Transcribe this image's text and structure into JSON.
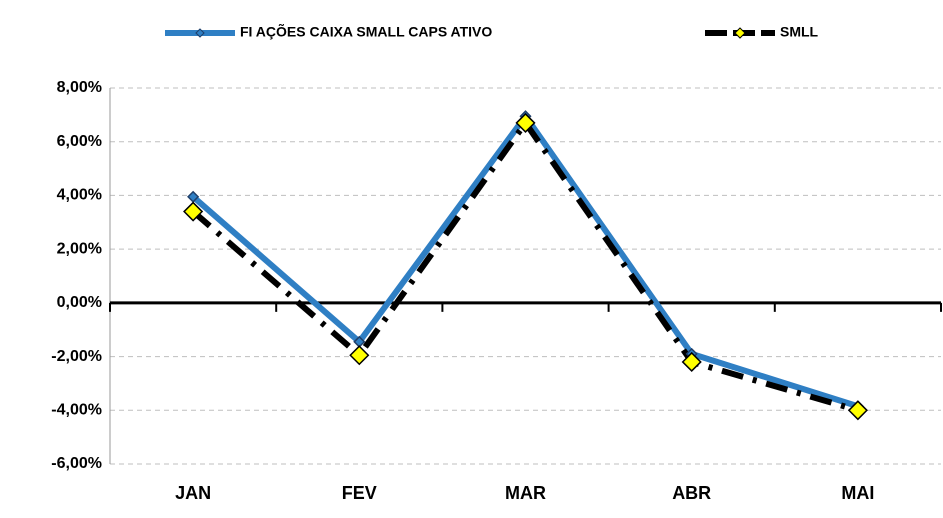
{
  "chart_data": {
    "type": "line",
    "categories": [
      "JAN",
      "FEV",
      "MAR",
      "ABR",
      "MAI"
    ],
    "series": [
      {
        "name": "FI AÇÕES CAIXA SMALL CAPS ATIVO",
        "color": "#2f7fc4",
        "values": [
          3.95,
          -1.45,
          6.95,
          -1.9,
          -3.85
        ]
      },
      {
        "name": "SMLL",
        "color": "#000000",
        "values": [
          3.4,
          -1.95,
          6.7,
          -2.2,
          -4.0
        ]
      }
    ],
    "ylim": [
      -6,
      8
    ],
    "yticks": [
      {
        "value": -6,
        "label": "-6,00%"
      },
      {
        "value": -4,
        "label": "-4,00%"
      },
      {
        "value": -2,
        "label": "-2,00%"
      },
      {
        "value": 0,
        "label": "0,00%"
      },
      {
        "value": 2,
        "label": "2,00%"
      },
      {
        "value": 4,
        "label": "4,00%"
      },
      {
        "value": 6,
        "label": "6,00%"
      },
      {
        "value": 8,
        "label": "8,00%"
      }
    ],
    "grid": true,
    "legend": "top"
  }
}
